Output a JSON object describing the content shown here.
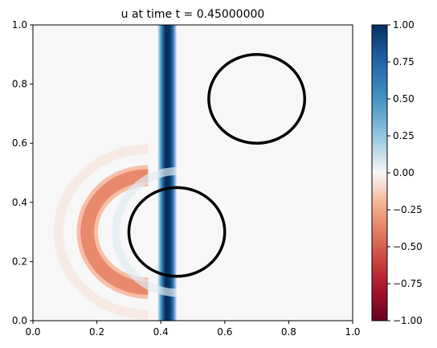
{
  "chart_data": {
    "type": "heatmap",
    "title": "u at time t =     0.45000000",
    "xlabel": "",
    "ylabel": "",
    "xlim": [
      0,
      1
    ],
    "ylim": [
      0,
      1
    ],
    "xticks": [
      "0.0",
      "0.2",
      "0.4",
      "0.6",
      "0.8",
      "1.0"
    ],
    "yticks": [
      "0.0",
      "0.2",
      "0.4",
      "0.6",
      "0.8",
      "1.0"
    ],
    "grid": false,
    "colormap": "RdBu",
    "colorbar": {
      "range": [
        -1.0,
        1.0
      ],
      "ticks": [
        "1.00",
        "0.75",
        "0.50",
        "0.25",
        "0.00",
        "−0.25",
        "−0.50",
        "−0.75",
        "−1.00"
      ],
      "tick_values": [
        1.0,
        0.75,
        0.5,
        0.25,
        0.0,
        -0.25,
        -0.5,
        -0.75,
        -1.0
      ]
    },
    "features": [
      {
        "kind": "vertical_band",
        "x_center": 0.42,
        "half_width": 0.03,
        "value": 1.0
      },
      {
        "kind": "arc",
        "cx": 0.36,
        "cy": 0.3,
        "radius": 0.19,
        "thickness": 0.035,
        "value": -0.35,
        "side": "left"
      },
      {
        "kind": "faint_arc",
        "cx": 0.36,
        "cy": 0.3,
        "radius": 0.28,
        "value": -0.04,
        "side": "left"
      },
      {
        "kind": "halo",
        "cx": 0.45,
        "cy": 0.3,
        "radius": 0.19,
        "value": 0.06,
        "side": "left"
      }
    ],
    "obstacles": [
      {
        "cx": 0.45,
        "cy": 0.3,
        "r": 0.15
      },
      {
        "cx": 0.7,
        "cy": 0.75,
        "r": 0.15
      }
    ],
    "background_value": 0.0,
    "colors": {
      "positive_dark": "#053061",
      "positive_mid": "#2166ac",
      "neutral": "#f7f7f7",
      "negative_mid": "#ef8a62",
      "negative_dark": "#67001f",
      "obstacle_stroke": "#000000"
    }
  }
}
